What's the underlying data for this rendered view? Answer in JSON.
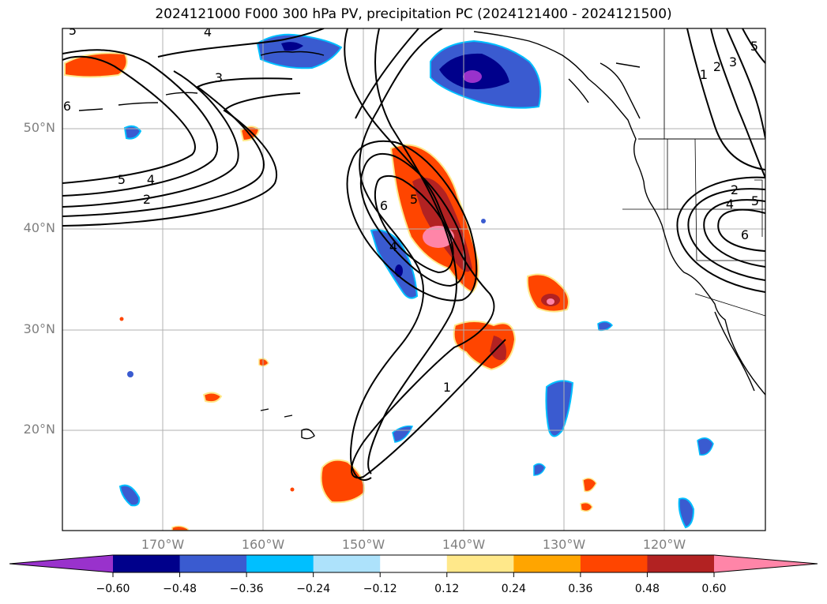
{
  "title": "2024121000 F000 300 hPa PV, precipitation PC (2024121400 - 2024121500)",
  "map": {
    "lon_range": [
      -180,
      -110
    ],
    "lat_range": [
      10,
      60
    ],
    "lat_labels": [
      "50°N",
      "40°N",
      "30°N",
      "20°N"
    ],
    "lon_labels": [
      "170°W",
      "160°W",
      "150°W",
      "140°W",
      "130°W",
      "120°W"
    ],
    "contour_labels": [
      "5",
      "4",
      "3",
      "6",
      "5",
      "4",
      "2",
      "6",
      "5",
      "4",
      "1",
      "1",
      "2",
      "3",
      "5",
      "2",
      "4",
      "6",
      "5"
    ]
  },
  "colorbar": {
    "colors": [
      "#9932cc",
      "#00008b",
      "#3a5bd0",
      "#00bfff",
      "#ade2fb",
      "#ffffff",
      "#ffe88a",
      "#ffa500",
      "#ff4500",
      "#b22222",
      "#ff85a8"
    ],
    "tick_labels": [
      "−0.60",
      "−0.48",
      "−0.36",
      "−0.24",
      "−0.12",
      "0.12",
      "0.24",
      "0.36",
      "0.48",
      "0.60"
    ]
  }
}
